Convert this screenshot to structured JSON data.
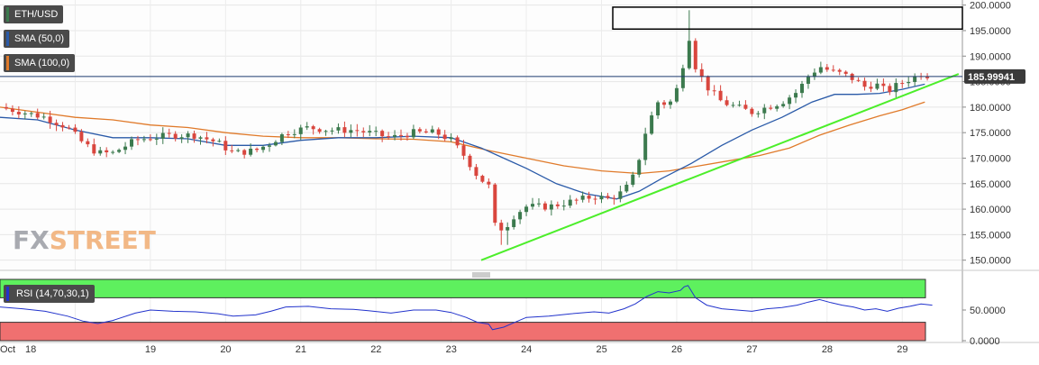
{
  "legend": {
    "items": [
      {
        "label": "ETH/USD",
        "color": "#3c7a4e"
      },
      {
        "label": "SMA (50,0)",
        "color": "#2a5aa8"
      },
      {
        "label": "SMA (100,0)",
        "color": "#e07a2a"
      }
    ]
  },
  "watermark": {
    "part1": "FX",
    "part2": "STREET"
  },
  "rsi_label": "RSI (14,70,30,1)",
  "colors": {
    "up_candle": "#3c7a4e",
    "down_candle": "#d9463e",
    "sma50": "#2a5aa8",
    "sma100": "#e07a2a",
    "trendline": "#4cee2a",
    "rsi_line": "#2233cc",
    "rsi_overbought_zone": "#5ef05e",
    "rsi_oversold_zone": "#f07070",
    "current_price_bg": "#3a3a3a"
  },
  "chart_data": [
    {
      "type": "candlestick",
      "symbol": "ETH/USD",
      "x_tick_labels": [
        "Oct",
        "18",
        "19",
        "20",
        "21",
        "22",
        "23",
        "24",
        "25",
        "26",
        "27",
        "28",
        "29"
      ],
      "y_tick_labels": [
        "200.0000",
        "195.0000",
        "190.0000",
        "185.0000",
        "180.0000",
        "175.0000",
        "170.0000",
        "165.0000",
        "160.0000",
        "155.0000",
        "150.0000"
      ],
      "ylim": [
        148,
        201
      ],
      "xlim": [
        17.0,
        29.8
      ],
      "current_price": "185.99941",
      "current_price_value": 186.0,
      "close_path": [
        [
          17.0,
          180.0
        ],
        [
          17.3,
          179.0
        ],
        [
          17.6,
          178.0
        ],
        [
          17.9,
          176.0
        ],
        [
          18.1,
          173.0
        ],
        [
          18.3,
          171.0
        ],
        [
          18.5,
          171.0
        ],
        [
          18.8,
          173.5
        ],
        [
          19.0,
          174.0
        ],
        [
          19.3,
          174.5
        ],
        [
          19.6,
          174.5
        ],
        [
          19.9,
          173.0
        ],
        [
          20.1,
          171.0
        ],
        [
          20.4,
          171.5
        ],
        [
          20.6,
          173.0
        ],
        [
          20.8,
          175.0
        ],
        [
          21.1,
          176.0
        ],
        [
          21.4,
          175.5
        ],
        [
          21.7,
          175.5
        ],
        [
          21.9,
          175.0
        ],
        [
          22.2,
          174.0
        ],
        [
          22.5,
          175.0
        ],
        [
          22.8,
          175.0
        ],
        [
          23.0,
          173.5
        ],
        [
          23.2,
          170.0
        ],
        [
          23.35,
          166.5
        ],
        [
          23.5,
          164.5
        ],
        [
          23.55,
          157.0
        ],
        [
          23.7,
          156.0
        ],
        [
          23.85,
          159.0
        ],
        [
          24.0,
          160.5
        ],
        [
          24.3,
          160.5
        ],
        [
          24.6,
          161.5
        ],
        [
          24.9,
          162.5
        ],
        [
          25.1,
          162.0
        ],
        [
          25.3,
          163.5
        ],
        [
          25.45,
          167.0
        ],
        [
          25.6,
          176.0
        ],
        [
          25.75,
          181.0
        ],
        [
          25.9,
          180.5
        ],
        [
          26.05,
          185.0
        ],
        [
          26.1,
          190.0
        ],
        [
          26.15,
          196.0
        ],
        [
          26.25,
          188.0
        ],
        [
          26.4,
          184.0
        ],
        [
          26.6,
          181.0
        ],
        [
          26.8,
          180.0
        ],
        [
          27.0,
          179.0
        ],
        [
          27.2,
          180.0
        ],
        [
          27.4,
          181.0
        ],
        [
          27.6,
          183.0
        ],
        [
          27.75,
          186.0
        ],
        [
          27.9,
          188.0
        ],
        [
          28.05,
          187.0
        ],
        [
          28.2,
          186.5
        ],
        [
          28.35,
          185.5
        ],
        [
          28.5,
          184.0
        ],
        [
          28.65,
          184.5
        ],
        [
          28.8,
          183.0
        ],
        [
          28.95,
          184.5
        ],
        [
          29.1,
          185.5
        ],
        [
          29.25,
          186.5
        ],
        [
          29.4,
          186.0
        ]
      ],
      "high_max": [
        26.15,
        199.0
      ],
      "low_min": [
        23.7,
        153.0
      ],
      "sma50": [
        [
          17.0,
          178.0
        ],
        [
          17.5,
          177.5
        ],
        [
          18.0,
          175.5
        ],
        [
          18.5,
          174.0
        ],
        [
          19.0,
          174.0
        ],
        [
          19.5,
          173.8
        ],
        [
          20.0,
          172.5
        ],
        [
          20.5,
          172.5
        ],
        [
          21.0,
          173.5
        ],
        [
          21.5,
          174.0
        ],
        [
          22.0,
          174.0
        ],
        [
          22.5,
          174.3
        ],
        [
          23.0,
          174.0
        ],
        [
          23.4,
          172.0
        ],
        [
          23.7,
          170.0
        ],
        [
          24.0,
          168.0
        ],
        [
          24.4,
          165.0
        ],
        [
          24.8,
          163.0
        ],
        [
          25.2,
          162.0
        ],
        [
          25.5,
          163.5
        ],
        [
          25.8,
          166.0
        ],
        [
          26.2,
          169.0
        ],
        [
          26.6,
          172.5
        ],
        [
          27.0,
          175.5
        ],
        [
          27.4,
          178.0
        ],
        [
          27.8,
          181.0
        ],
        [
          28.1,
          182.5
        ],
        [
          28.4,
          182.5
        ],
        [
          28.7,
          182.7
        ],
        [
          29.0,
          183.5
        ],
        [
          29.3,
          184.5
        ]
      ],
      "sma100": [
        [
          17.0,
          180.0
        ],
        [
          17.5,
          179.0
        ],
        [
          18.0,
          178.0
        ],
        [
          18.5,
          177.5
        ],
        [
          19.0,
          176.5
        ],
        [
          19.5,
          176.0
        ],
        [
          20.0,
          175.0
        ],
        [
          20.5,
          174.3
        ],
        [
          21.0,
          174.0
        ],
        [
          21.5,
          174.0
        ],
        [
          22.0,
          173.8
        ],
        [
          22.5,
          173.7
        ],
        [
          23.0,
          173.2
        ],
        [
          23.5,
          171.5
        ],
        [
          24.0,
          170.0
        ],
        [
          24.5,
          168.5
        ],
        [
          25.0,
          167.5
        ],
        [
          25.5,
          167.0
        ],
        [
          25.9,
          167.5
        ],
        [
          26.3,
          168.5
        ],
        [
          26.7,
          169.5
        ],
        [
          27.1,
          170.5
        ],
        [
          27.5,
          172.0
        ],
        [
          27.9,
          174.5
        ],
        [
          28.3,
          176.5
        ],
        [
          28.7,
          178.3
        ],
        [
          29.0,
          179.5
        ],
        [
          29.3,
          181.0
        ]
      ],
      "trendline": [
        [
          23.4,
          150.0
        ],
        [
          29.75,
          186.5
        ]
      ],
      "box": {
        "x0": 25.15,
        "x1": 29.8,
        "y0": 195.3,
        "y1": 199.6
      }
    },
    {
      "type": "line",
      "name": "RSI (14,70,30,1)",
      "y_tick_labels": [
        "50.0000",
        "0.0000"
      ],
      "ylim": [
        0,
        100
      ],
      "overbought": 70,
      "oversold": 30,
      "values": [
        [
          17.0,
          55
        ],
        [
          17.3,
          52
        ],
        [
          17.6,
          48
        ],
        [
          17.9,
          40
        ],
        [
          18.1,
          32
        ],
        [
          18.3,
          28
        ],
        [
          18.5,
          33
        ],
        [
          18.8,
          45
        ],
        [
          19.0,
          50
        ],
        [
          19.3,
          48
        ],
        [
          19.6,
          47
        ],
        [
          19.9,
          44
        ],
        [
          20.1,
          40
        ],
        [
          20.4,
          42
        ],
        [
          20.6,
          48
        ],
        [
          20.8,
          55
        ],
        [
          21.1,
          56
        ],
        [
          21.4,
          52
        ],
        [
          21.7,
          51
        ],
        [
          21.9,
          49
        ],
        [
          22.2,
          45
        ],
        [
          22.5,
          50
        ],
        [
          22.8,
          50
        ],
        [
          23.0,
          46
        ],
        [
          23.2,
          38
        ],
        [
          23.35,
          30
        ],
        [
          23.5,
          27
        ],
        [
          23.55,
          18
        ],
        [
          23.7,
          22
        ],
        [
          23.85,
          30
        ],
        [
          24.0,
          38
        ],
        [
          24.3,
          40
        ],
        [
          24.6,
          44
        ],
        [
          24.9,
          47
        ],
        [
          25.1,
          45
        ],
        [
          25.3,
          52
        ],
        [
          25.45,
          60
        ],
        [
          25.6,
          72
        ],
        [
          25.75,
          80
        ],
        [
          25.9,
          78
        ],
        [
          26.05,
          82
        ],
        [
          26.1,
          88
        ],
        [
          26.15,
          90
        ],
        [
          26.25,
          70
        ],
        [
          26.4,
          58
        ],
        [
          26.6,
          52
        ],
        [
          26.8,
          50
        ],
        [
          27.0,
          48
        ],
        [
          27.2,
          52
        ],
        [
          27.4,
          54
        ],
        [
          27.6,
          58
        ],
        [
          27.75,
          63
        ],
        [
          27.9,
          67
        ],
        [
          28.05,
          62
        ],
        [
          28.2,
          58
        ],
        [
          28.35,
          55
        ],
        [
          28.5,
          50
        ],
        [
          28.65,
          52
        ],
        [
          28.8,
          48
        ],
        [
          28.95,
          53
        ],
        [
          29.1,
          56
        ],
        [
          29.25,
          60
        ],
        [
          29.4,
          58
        ]
      ]
    }
  ]
}
